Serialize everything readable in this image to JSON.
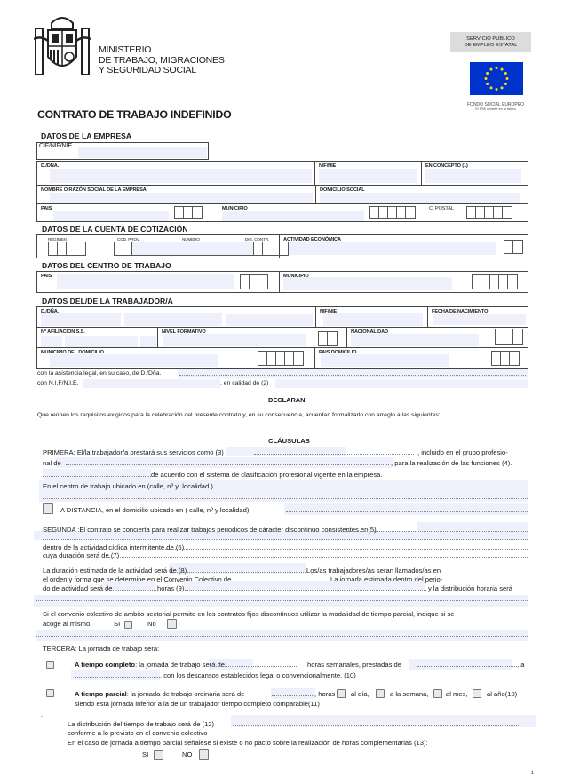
{
  "header": {
    "ministry": [
      "MINISTERIO",
      "DE TRABAJO, MIGRACIONES",
      "Y SEGURIDAD SOCIAL"
    ],
    "sepe": [
      "SERVICIO PÚBLICO",
      "DE EMPLEO ESTATAL"
    ],
    "fse": "FONDO SOCIAL EUROPEO",
    "fse_motto": "El FSE invierte en tu futuro",
    "eu_flag_color": "#0033cc",
    "star_color": "#ffdd00"
  },
  "title": "CONTRATO DE TRABAJO INDEFINIDO",
  "empresa": {
    "heading": "DATOS DE LA EMPRESA",
    "cif": "CIF/NIF/NIE",
    "dna": "D./DÑA.",
    "nif": "NIF/NIE",
    "concepto": "EN  CONCEPTO (1)",
    "nombre": "NOMBRE O RAZÓN SOCIAL DE LA EMPRESA",
    "domicilio": "DOMICILIO SOCIAL",
    "pais": "PAIS",
    "municipio": "MUNICIPIO",
    "cp": "C. POSTAL"
  },
  "cotizacion": {
    "heading": "DATOS DE LA CUENTA DE COTIZACIÓN",
    "regimen": "RÉGIMEN",
    "cod_prov": "COD. PROV.",
    "numero": "NÚMERO",
    "dig": "DIG. CONTR.",
    "actividad": "ACTIVIDAD ECONÓMICA"
  },
  "centro": {
    "heading": "DATOS DEL CENTRO DE TRABAJO",
    "pais": "PAIS",
    "municipio": "MUNICIPIO"
  },
  "trabajador": {
    "heading": "DATOS DEL/DE LA TRABAJADOR/A",
    "dna": "D./DÑA.",
    "nif": "NIF/NIE",
    "fecha": "FECHA DE NACIMIENTO",
    "afiliacion": "Nº AFILIACIÓN S.S.",
    "nivel": "NIVEL FORMATIVO",
    "nacionalidad": "NACIONALIDAD",
    "municipio": "MUNICIPIO DEL DOMICILIO",
    "pais": "PAIS DOMICILIO"
  },
  "asistencia": "con la asistencia legal, en su caso, de D./Dña.",
  "con_nif": "con N.I.F/N.I.E.",
  "calidad": ", en calidad de (2)",
  "declaran": "DECLARAN",
  "que_reunen": "Que reúnen los requisitos exigidos para la celebración del presente contrato y,  en su consecuencia, acuerdan formalizarlo con arreglo a las siguientes:",
  "clausulas": "CLÁUSULAS",
  "primera": {
    "l1a": "PRIMERA: El/la  trabajador/a  prestará sus servicios como (3)",
    "l1b": ", incluido en el grupo profesio-",
    "l2a": "nal  de",
    "l2b": ", para la realización de las funciones (4).",
    "l3": "de acuerdo con el sistema de clasificación profesional vigente en la empresa.",
    "l4": "En el  centro de trabajo ubicado en (calle, nº y .localidad )",
    "distancia": "A DISTANCIA, en el domicilio ubicado en ( calle, nº y localidad)"
  },
  "segunda": {
    "l1": "SEGUNDA :El contrato se concierta para realizar trabajos periodicos de cáracter discontinuo consistentes en(5)",
    "l2": "dentro de la actividad cíclica intermitente de (6)",
    "l3": "cuya duración será de (7)",
    "d1a": "La duración estimada de la actividad será de (8)",
    "d1b": "Los/as trabajadores/as seran llamados/as en",
    "d2a": "el orden y forma que se determine en el Convenio Colectivo de",
    "d2b": "La jornada estimada dentro del perio-",
    "d3a": "do de actividad será de",
    "d3b": "horas (9)",
    "d3c": "y la distribución horaria será",
    "parcial_q": "Si el convenio colectivo de ambito sectorial permite en los contratos fijos discontinuos utilizar la modalidad de tiempo parcial, indique si se",
    "acoge": "acoge al mismo.",
    "si": "SI",
    "no": "No"
  },
  "tercera": {
    "heading": "TERCERA: La jornada de trabajo será:",
    "completo_b": "A tiempo completo",
    "completo_1": ": la jornada de trabajo será de",
    "completo_2": "horas semanales, prestadas de",
    "completo_3": ", a",
    "completo_4": ", con los descansos  establecidos legal o convencionalmente. (10)",
    "parcial_b": "A tiempo parcial",
    "parcial_1": ": la jornada de trabajo ordinaria será de",
    ",horas": ", horas",
    "dia": "al día,",
    "semana": "a la semana,",
    "mes": "al mes,",
    "anio": "al año(10)",
    "parcial_2": "siendo esta jornada inferior a la de un trabajador tiempo completo comparable(11)",
    "distribucion": "La distribución del tiempo de trabajo será de (12)",
    "conforme": "conforme a lo previsto en el convenio colectivo",
    "caso": "En el caso de jornada a tiempo parcial señalese si existe o no pacto sobre la realización de horas complementarias (13):",
    "si": "SI",
    "no": "NO"
  },
  "page_number": "1"
}
